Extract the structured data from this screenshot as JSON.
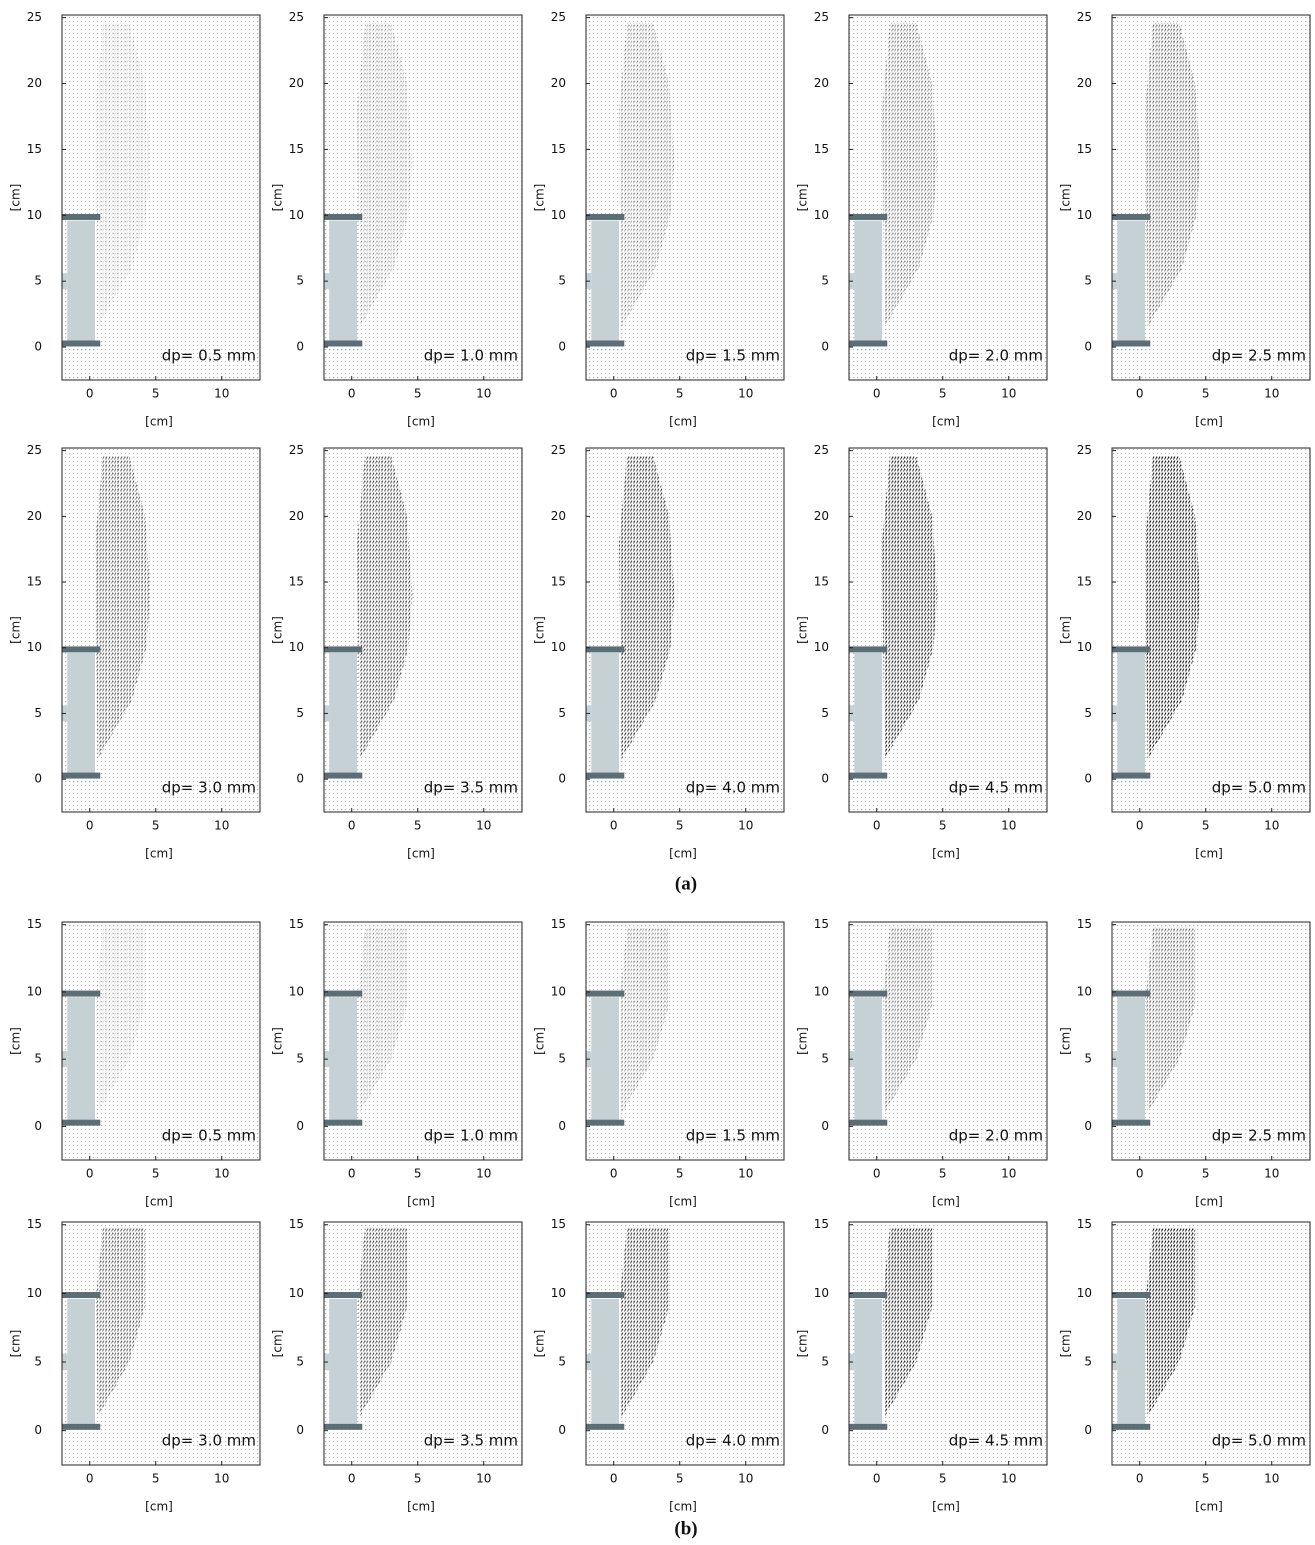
{
  "chart_data": [
    {
      "type": "vector-field",
      "annotation": "dp= 0.5 mm",
      "xlabel": "[cm]",
      "ylabel": "[cm]",
      "xlim": [
        -2.1,
        12.9
      ],
      "ylim": [
        -2.5,
        25.2
      ],
      "xticks": [
        0,
        5,
        10
      ],
      "yticks": [
        0,
        5,
        10,
        15,
        20,
        25
      ]
    },
    {
      "type": "vector-field",
      "annotation": "dp= 1.0 mm",
      "xlabel": "[cm]",
      "ylabel": "[cm]",
      "xlim": [
        -2.1,
        12.9
      ],
      "ylim": [
        -2.5,
        25.2
      ],
      "xticks": [
        0,
        5,
        10
      ],
      "yticks": [
        0,
        5,
        10,
        15,
        20,
        25
      ]
    },
    {
      "type": "vector-field",
      "annotation": "dp= 1.5 mm",
      "xlabel": "[cm]",
      "ylabel": "[cm]",
      "xlim": [
        -2.1,
        12.9
      ],
      "ylim": [
        -2.5,
        25.2
      ],
      "xticks": [
        0,
        5,
        10
      ],
      "yticks": [
        0,
        5,
        10,
        15,
        20,
        25
      ]
    },
    {
      "type": "vector-field",
      "annotation": "dp= 2.0 mm",
      "xlabel": "[cm]",
      "ylabel": "[cm]",
      "xlim": [
        -2.1,
        12.9
      ],
      "ylim": [
        -2.5,
        25.2
      ],
      "xticks": [
        0,
        5,
        10
      ],
      "yticks": [
        0,
        5,
        10,
        15,
        20,
        25
      ]
    },
    {
      "type": "vector-field",
      "annotation": "dp= 2.5 mm",
      "xlabel": "[cm]",
      "ylabel": "[cm]",
      "xlim": [
        -2.1,
        12.9
      ],
      "ylim": [
        -2.5,
        25.2
      ],
      "xticks": [
        0,
        5,
        10
      ],
      "yticks": [
        0,
        5,
        10,
        15,
        20,
        25
      ]
    },
    {
      "type": "vector-field",
      "annotation": "dp= 3.0 mm",
      "xlabel": "[cm]",
      "ylabel": "[cm]",
      "xlim": [
        -2.1,
        12.9
      ],
      "ylim": [
        -2.5,
        25.2
      ],
      "xticks": [
        0,
        5,
        10
      ],
      "yticks": [
        0,
        5,
        10,
        15,
        20,
        25
      ]
    },
    {
      "type": "vector-field",
      "annotation": "dp= 3.5 mm",
      "xlabel": "[cm]",
      "ylabel": "[cm]",
      "xlim": [
        -2.1,
        12.9
      ],
      "ylim": [
        -2.5,
        25.2
      ],
      "xticks": [
        0,
        5,
        10
      ],
      "yticks": [
        0,
        5,
        10,
        15,
        20,
        25
      ]
    },
    {
      "type": "vector-field",
      "annotation": "dp= 4.0 mm",
      "xlabel": "[cm]",
      "ylabel": "[cm]",
      "xlim": [
        -2.1,
        12.9
      ],
      "ylim": [
        -2.5,
        25.2
      ],
      "xticks": [
        0,
        5,
        10
      ],
      "yticks": [
        0,
        5,
        10,
        15,
        20,
        25
      ]
    },
    {
      "type": "vector-field",
      "annotation": "dp= 4.5 mm",
      "xlabel": "[cm]",
      "ylabel": "[cm]",
      "xlim": [
        -2.1,
        12.9
      ],
      "ylim": [
        -2.5,
        25.2
      ],
      "xticks": [
        0,
        5,
        10
      ],
      "yticks": [
        0,
        5,
        10,
        15,
        20,
        25
      ]
    },
    {
      "type": "vector-field",
      "annotation": "dp= 5.0 mm",
      "xlabel": "[cm]",
      "ylabel": "[cm]",
      "xlim": [
        -2.1,
        12.9
      ],
      "ylim": [
        -2.5,
        25.2
      ],
      "xticks": [
        0,
        5,
        10
      ],
      "yticks": [
        0,
        5,
        10,
        15,
        20,
        25
      ]
    },
    {
      "type": "vector-field",
      "annotation": "dp= 0.5 mm",
      "xlabel": "[cm]",
      "ylabel": "[cm]",
      "xlim": [
        -2.1,
        12.9
      ],
      "ylim": [
        -2.5,
        15.2
      ],
      "xticks": [
        0,
        5,
        10
      ],
      "yticks": [
        0,
        5,
        10,
        15
      ]
    },
    {
      "type": "vector-field",
      "annotation": "dp= 1.0 mm",
      "xlabel": "[cm]",
      "ylabel": "[cm]",
      "xlim": [
        -2.1,
        12.9
      ],
      "ylim": [
        -2.5,
        15.2
      ],
      "xticks": [
        0,
        5,
        10
      ],
      "yticks": [
        0,
        5,
        10,
        15
      ]
    },
    {
      "type": "vector-field",
      "annotation": "dp= 1.5 mm",
      "xlabel": "[cm]",
      "ylabel": "[cm]",
      "xlim": [
        -2.1,
        12.9
      ],
      "ylim": [
        -2.5,
        15.2
      ],
      "xticks": [
        0,
        5,
        10
      ],
      "yticks": [
        0,
        5,
        10,
        15
      ]
    },
    {
      "type": "vector-field",
      "annotation": "dp= 2.0 mm",
      "xlabel": "[cm]",
      "ylabel": "[cm]",
      "xlim": [
        -2.1,
        12.9
      ],
      "ylim": [
        -2.5,
        15.2
      ],
      "xticks": [
        0,
        5,
        10
      ],
      "yticks": [
        0,
        5,
        10,
        15
      ]
    },
    {
      "type": "vector-field",
      "annotation": "dp= 2.5 mm",
      "xlabel": "[cm]",
      "ylabel": "[cm]",
      "xlim": [
        -2.1,
        12.9
      ],
      "ylim": [
        -2.5,
        15.2
      ],
      "xticks": [
        0,
        5,
        10
      ],
      "yticks": [
        0,
        5,
        10,
        15
      ]
    },
    {
      "type": "vector-field",
      "annotation": "dp= 3.0 mm",
      "xlabel": "[cm]",
      "ylabel": "[cm]",
      "xlim": [
        -2.1,
        12.9
      ],
      "ylim": [
        -2.5,
        15.2
      ],
      "xticks": [
        0,
        5,
        10
      ],
      "yticks": [
        0,
        5,
        10,
        15
      ]
    },
    {
      "type": "vector-field",
      "annotation": "dp= 3.5 mm",
      "xlabel": "[cm]",
      "ylabel": "[cm]",
      "xlim": [
        -2.1,
        12.9
      ],
      "ylim": [
        -2.5,
        15.2
      ],
      "xticks": [
        0,
        5,
        10
      ],
      "yticks": [
        0,
        5,
        10,
        15
      ]
    },
    {
      "type": "vector-field",
      "annotation": "dp= 4.0 mm",
      "xlabel": "[cm]",
      "ylabel": "[cm]",
      "xlim": [
        -2.1,
        12.9
      ],
      "ylim": [
        -2.5,
        15.2
      ],
      "xticks": [
        0,
        5,
        10
      ],
      "yticks": [
        0,
        5,
        10,
        15
      ]
    },
    {
      "type": "vector-field",
      "annotation": "dp= 4.5 mm",
      "xlabel": "[cm]",
      "ylabel": "[cm]",
      "xlim": [
        -2.1,
        12.9
      ],
      "ylim": [
        -2.5,
        15.2
      ],
      "xticks": [
        0,
        5,
        10
      ],
      "yticks": [
        0,
        5,
        10,
        15
      ]
    },
    {
      "type": "vector-field",
      "annotation": "dp= 5.0 mm",
      "xlabel": "[cm]",
      "ylabel": "[cm]",
      "xlim": [
        -2.1,
        12.9
      ],
      "ylim": [
        -2.5,
        15.2
      ],
      "xticks": [
        0,
        5,
        10
      ],
      "yticks": [
        0,
        5,
        10,
        15
      ]
    }
  ],
  "figure_labels": [
    "(a)",
    "(b)"
  ]
}
